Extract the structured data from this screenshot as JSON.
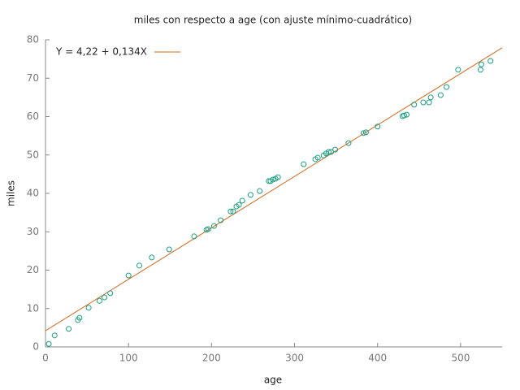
{
  "chart_data": {
    "type": "scatter",
    "title": "miles con respecto a age (con ajuste mínimo-cuadrático)",
    "x_label": "age",
    "y_label": "miles",
    "x": [
      4,
      11,
      28,
      39,
      41,
      52,
      65,
      71,
      78,
      100,
      113,
      128,
      149,
      179,
      194,
      196,
      203,
      211,
      223,
      226,
      230,
      233,
      237,
      247,
      258,
      269,
      271,
      274,
      277,
      280,
      311,
      325,
      328,
      335,
      338,
      341,
      344,
      349,
      365,
      383,
      386,
      400,
      430,
      432,
      435,
      444,
      455,
      462,
      464,
      476,
      483,
      497,
      524,
      525,
      536
    ],
    "values": [
      0.8,
      3,
      4.7,
      7,
      7.6,
      10.2,
      12,
      12.9,
      14,
      18.6,
      21.2,
      23.3,
      25.4,
      28.8,
      30.5,
      30.7,
      31.5,
      33,
      35.3,
      35.3,
      36.6,
      37,
      38.1,
      39.6,
      40.6,
      43.2,
      43.2,
      43.6,
      43.8,
      44.2,
      47.6,
      48.9,
      49.3,
      49.9,
      50.4,
      50.8,
      50.8,
      51.4,
      53.1,
      55.7,
      55.9,
      57.4,
      60.1,
      60.3,
      60.5,
      63.1,
      63.7,
      63.7,
      65,
      65.6,
      67.7,
      72.2,
      72.2,
      73.6,
      74.5
    ],
    "color": "#1a9e82",
    "fit": {
      "name": "Y = 4,22 + 0,134X",
      "intercept": 4.22,
      "slope": 0.134,
      "color": "#d2691e"
    },
    "xlim": [
      0,
      550
    ],
    "xticks": [
      0,
      100,
      200,
      300,
      400,
      500
    ],
    "ylim": [
      0,
      80
    ],
    "yticks": [
      0,
      10,
      20,
      30,
      40,
      50,
      60,
      70,
      80
    ]
  }
}
